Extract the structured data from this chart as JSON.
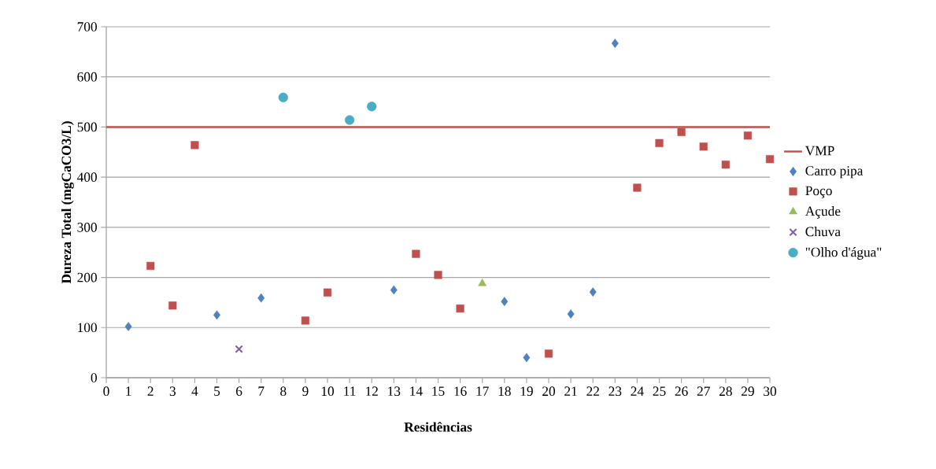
{
  "chart_data": {
    "type": "scatter",
    "xlabel": "Residências",
    "ylabel": "Dureza Total (mgCaCO3/L)",
    "xlim": [
      0,
      30
    ],
    "xticks": [
      0,
      1,
      2,
      3,
      4,
      5,
      6,
      7,
      8,
      9,
      10,
      11,
      12,
      13,
      14,
      15,
      16,
      17,
      18,
      19,
      20,
      21,
      22,
      23,
      24,
      25,
      26,
      27,
      28,
      29,
      30
    ],
    "ylim": [
      0,
      700
    ],
    "yticks": [
      0,
      100,
      200,
      300,
      400,
      500,
      600,
      700
    ],
    "grid": "y",
    "legend": "right",
    "ref_lines": [
      {
        "axis": "y",
        "value": 500,
        "label": "VMP",
        "color": "#c0504d",
        "line_style": "solid"
      }
    ],
    "series": [
      {
        "name": "Carro pipa",
        "color": "#4f81bd",
        "marker": "diamond",
        "x": [
          1,
          5,
          7,
          13,
          18,
          19,
          21,
          22,
          23
        ],
        "values": [
          102,
          125,
          159,
          175,
          152,
          40,
          127,
          171,
          667
        ]
      },
      {
        "name": "Poço",
        "color": "#c0504d",
        "marker": "square",
        "x": [
          2,
          3,
          4,
          9,
          10,
          14,
          15,
          16,
          20,
          24,
          25,
          26,
          27,
          28,
          29,
          30
        ],
        "values": [
          223,
          144,
          464,
          114,
          170,
          247,
          205,
          138,
          48,
          379,
          468,
          490,
          461,
          425,
          483,
          436
        ]
      },
      {
        "name": "Açude",
        "color": "#9bbb59",
        "marker": "triangle",
        "x": [
          17
        ],
        "values": [
          188
        ]
      },
      {
        "name": "Chuva",
        "color": "#8064a2",
        "marker": "cross",
        "x": [
          6
        ],
        "values": [
          57
        ]
      },
      {
        "name": "\"Olho d'água\"",
        "color": "#4bacc6",
        "marker": "circle",
        "x": [
          8,
          11,
          12
        ],
        "values": [
          559,
          514,
          541
        ]
      }
    ]
  }
}
